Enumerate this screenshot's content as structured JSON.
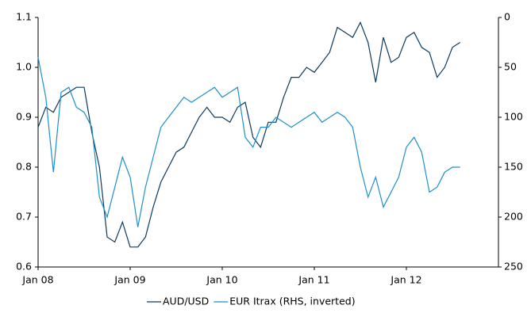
{
  "chart_data": {
    "type": "line",
    "x": [
      "2008-01",
      "2008-02",
      "2008-03",
      "2008-04",
      "2008-05",
      "2008-06",
      "2008-07",
      "2008-08",
      "2008-09",
      "2008-10",
      "2008-11",
      "2008-12",
      "2009-01",
      "2009-02",
      "2009-03",
      "2009-04",
      "2009-05",
      "2009-06",
      "2009-07",
      "2009-08",
      "2009-09",
      "2009-10",
      "2009-11",
      "2009-12",
      "2010-01",
      "2010-02",
      "2010-03",
      "2010-04",
      "2010-05",
      "2010-06",
      "2010-07",
      "2010-08",
      "2010-09",
      "2010-10",
      "2010-11",
      "2010-12",
      "2011-01",
      "2011-02",
      "2011-03",
      "2011-04",
      "2011-05",
      "2011-06",
      "2011-07",
      "2011-08",
      "2011-09",
      "2011-10",
      "2011-11",
      "2011-12",
      "2012-01",
      "2012-02",
      "2012-03",
      "2012-04",
      "2012-05",
      "2012-06",
      "2012-07",
      "2012-08"
    ],
    "series": [
      {
        "name": "AUD/USD",
        "color": "#0d3a5c",
        "values": [
          0.88,
          0.92,
          0.91,
          0.94,
          0.95,
          0.96,
          0.96,
          0.87,
          0.8,
          0.66,
          0.65,
          0.69,
          0.64,
          0.64,
          0.66,
          0.72,
          0.77,
          0.8,
          0.83,
          0.84,
          0.87,
          0.9,
          0.92,
          0.9,
          0.9,
          0.89,
          0.92,
          0.93,
          0.86,
          0.84,
          0.89,
          0.89,
          0.94,
          0.98,
          0.98,
          1.0,
          0.99,
          1.01,
          1.03,
          1.08,
          1.07,
          1.06,
          1.09,
          1.05,
          0.97,
          1.06,
          1.01,
          1.02,
          1.06,
          1.07,
          1.04,
          1.03,
          0.98,
          1.0,
          1.04,
          1.05
        ]
      },
      {
        "name": "EUR Itrax (RHS, inverted)",
        "color": "#1f8fc9",
        "axis": "y2",
        "values": [
          40,
          80,
          155,
          75,
          70,
          90,
          95,
          110,
          180,
          200,
          170,
          140,
          160,
          210,
          170,
          140,
          110,
          100,
          90,
          80,
          85,
          80,
          75,
          70,
          80,
          75,
          70,
          120,
          130,
          110,
          110,
          100,
          105,
          110,
          105,
          100,
          95,
          105,
          100,
          95,
          100,
          110,
          150,
          180,
          160,
          190,
          175,
          160,
          130,
          120,
          135,
          175,
          170,
          155,
          150,
          150
        ]
      }
    ],
    "xlim": [
      "2008-01",
      "2013-01"
    ],
    "xticks": [
      {
        "value": "2008-01",
        "label": "Jan 08"
      },
      {
        "value": "2009-01",
        "label": "Jan 09"
      },
      {
        "value": "2010-01",
        "label": "Jan 10"
      },
      {
        "value": "2011-01",
        "label": "Jan 11"
      },
      {
        "value": "2012-01",
        "label": "Jan 12"
      }
    ],
    "ylim": [
      0.6,
      1.1
    ],
    "yticks": [
      0.6,
      0.7,
      0.8,
      0.9,
      {
        "value": 1,
        "label": "1.0"
      },
      1.1
    ],
    "y2lim": [
      0,
      250
    ],
    "y2ticks": [
      0,
      50,
      100,
      150,
      200,
      250
    ],
    "y2_inverted": true,
    "grid": false,
    "legend": "bottom"
  }
}
